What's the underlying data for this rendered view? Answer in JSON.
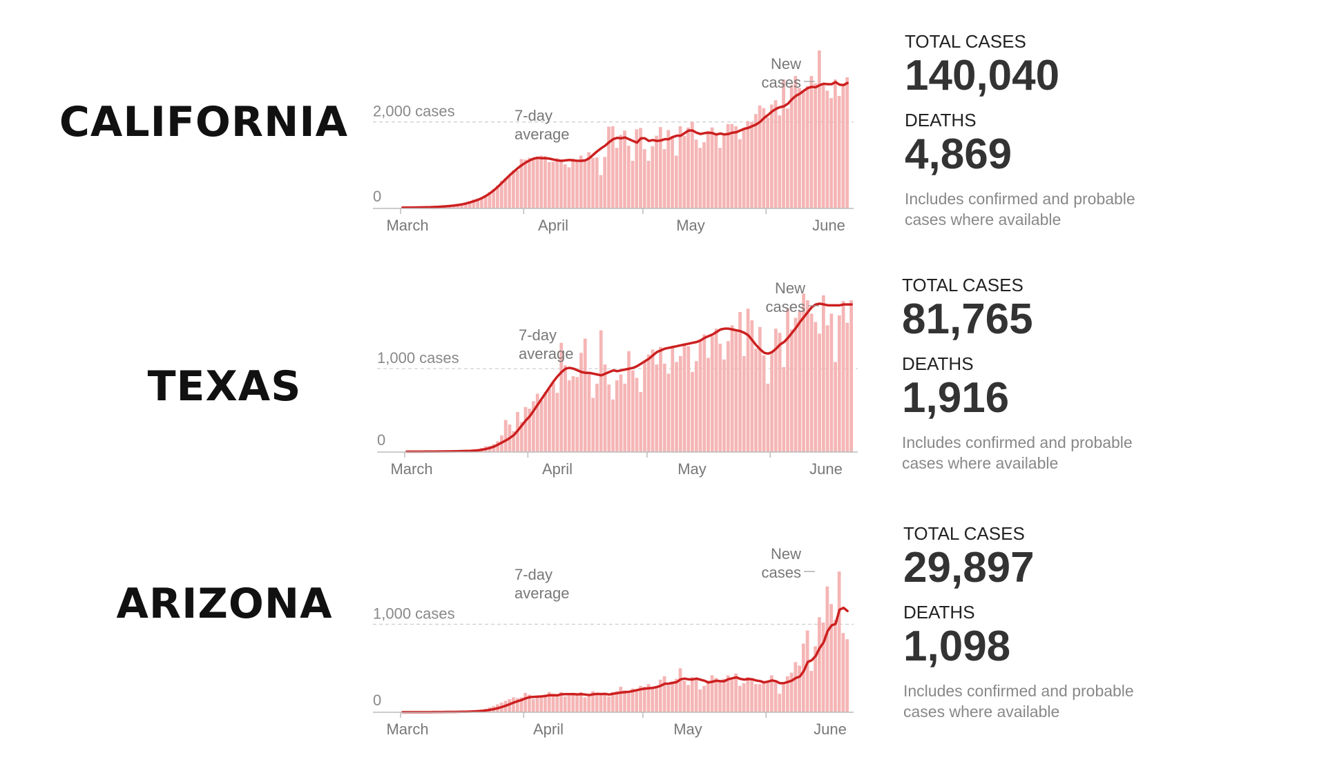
{
  "common": {
    "months": [
      "March",
      "April",
      "May",
      "June"
    ],
    "avg_label_line1": "7-day",
    "avg_label_line2": "average",
    "new_label_line1": "New",
    "new_label_line2": "cases",
    "total_label": "TOTAL CASES",
    "deaths_label": "DEATHS",
    "note_line1": "Includes confirmed and probable",
    "note_line2": "cases where available"
  },
  "colors": {
    "bar": "#f5b5b5",
    "line": "#cc1f1f",
    "grid": "#cccccc",
    "axis": "#bbbbbb"
  },
  "panels": [
    {
      "name": "CALIFORNIA",
      "total_cases": "140,040",
      "deaths": "4,869",
      "ref_label": "2,000 cases",
      "zero_label": "0"
    },
    {
      "name": "TEXAS",
      "total_cases": "81,765",
      "deaths": "1,916",
      "ref_label": "1,000 cases",
      "zero_label": "0"
    },
    {
      "name": "ARIZONA",
      "total_cases": "29,897",
      "deaths": "1,098",
      "ref_label": "1,000 cases",
      "zero_label": "0"
    }
  ],
  "chart_data": [
    {
      "type": "bar",
      "x_start": "2020-03-01",
      "ref_value": 2000,
      "ylim": [
        0,
        3700
      ],
      "new_cases": [
        20,
        15,
        22,
        18,
        25,
        30,
        28,
        35,
        40,
        45,
        55,
        60,
        70,
        80,
        95,
        110,
        140,
        170,
        210,
        230,
        260,
        310,
        380,
        450,
        530,
        640,
        700,
        770,
        880,
        880,
        1140,
        1130,
        1170,
        1140,
        1190,
        1220,
        1210,
        1070,
        1080,
        1160,
        1130,
        1020,
        950,
        1150,
        1070,
        1220,
        1140,
        1300,
        1170,
        1180,
        770,
        1190,
        1890,
        1900,
        1400,
        1700,
        1800,
        1450,
        1100,
        1830,
        1860,
        1370,
        1100,
        1440,
        1680,
        1880,
        1370,
        1810,
        1670,
        1220,
        1900,
        1680,
        1870,
        2000,
        1590,
        1400,
        1530,
        1790,
        1870,
        1730,
        1400,
        1720,
        1950,
        1950,
        1900,
        1600,
        1840,
        2020,
        2000,
        2180,
        2380,
        2320,
        2100,
        2400,
        2500,
        2150,
        2980,
        2310,
        2850,
        3060,
        2780,
        2730,
        2830,
        3060,
        2890,
        3650,
        2850,
        2720,
        2550,
        2980,
        2600,
        2830,
        3030
      ],
      "avg": [
        20,
        20,
        20,
        22,
        24,
        26,
        28,
        30,
        34,
        38,
        44,
        50,
        58,
        68,
        80,
        95,
        115,
        140,
        168,
        200,
        240,
        290,
        350,
        420,
        500,
        590,
        680,
        770,
        850,
        930,
        1000,
        1060,
        1110,
        1150,
        1170,
        1160,
        1160,
        1150,
        1130,
        1110,
        1100,
        1110,
        1120,
        1110,
        1100,
        1100,
        1110,
        1160,
        1240,
        1320,
        1390,
        1450,
        1530,
        1600,
        1630,
        1620,
        1640,
        1600,
        1560,
        1520,
        1620,
        1620,
        1560,
        1580,
        1560,
        1570,
        1600,
        1600,
        1650,
        1680,
        1680,
        1740,
        1800,
        1800,
        1750,
        1720,
        1740,
        1750,
        1740,
        1710,
        1730,
        1710,
        1720,
        1750,
        1760,
        1800,
        1840,
        1860,
        1900,
        1940,
        2000,
        2090,
        2160,
        2240,
        2300,
        2340,
        2360,
        2420,
        2520,
        2600,
        2650,
        2720,
        2780,
        2810,
        2800,
        2850,
        2880,
        2870,
        2870,
        2920,
        2860,
        2850,
        2900
      ]
    },
    {
      "type": "bar",
      "x_start": "2020-03-01",
      "ref_value": 1000,
      "ylim": [
        0,
        1920
      ],
      "new_cases": [
        5,
        5,
        5,
        5,
        6,
        6,
        6,
        7,
        7,
        8,
        8,
        9,
        10,
        12,
        14,
        16,
        20,
        26,
        34,
        50,
        70,
        75,
        95,
        130,
        200,
        385,
        330,
        250,
        480,
        360,
        540,
        520,
        610,
        700,
        620,
        720,
        760,
        830,
        710,
        1310,
        1040,
        860,
        910,
        900,
        1190,
        1360,
        940,
        650,
        820,
        1460,
        1050,
        810,
        630,
        860,
        930,
        820,
        1210,
        980,
        890,
        720,
        1080,
        1170,
        1230,
        1050,
        1260,
        1060,
        940,
        1270,
        1080,
        1150,
        1300,
        1270,
        960,
        1090,
        1340,
        1410,
        1130,
        1390,
        1480,
        1300,
        1110,
        1330,
        1520,
        1470,
        1680,
        1150,
        1720,
        1580,
        1240,
        1500,
        1160,
        820,
        1200,
        1480,
        1430,
        1020,
        1720,
        1470,
        1610,
        1700,
        1900,
        1820,
        1660,
        1560,
        1420,
        1880,
        1520,
        1660,
        1080,
        1640,
        1810,
        1550,
        1820
      ],
      "avg": [
        5,
        5,
        5,
        5,
        5,
        6,
        6,
        6,
        7,
        7,
        8,
        8,
        9,
        10,
        12,
        13,
        15,
        18,
        22,
        28,
        38,
        50,
        66,
        90,
        115,
        140,
        170,
        205,
        260,
        320,
        380,
        430,
        500,
        570,
        640,
        710,
        780,
        850,
        910,
        960,
        1000,
        1010,
        1000,
        980,
        960,
        950,
        950,
        940,
        930,
        920,
        940,
        960,
        980,
        970,
        980,
        990,
        1000,
        1010,
        1030,
        1060,
        1090,
        1120,
        1160,
        1200,
        1220,
        1240,
        1250,
        1260,
        1270,
        1280,
        1290,
        1300,
        1310,
        1320,
        1340,
        1370,
        1390,
        1410,
        1440,
        1470,
        1480,
        1480,
        1470,
        1460,
        1450,
        1430,
        1400,
        1340,
        1280,
        1230,
        1190,
        1180,
        1200,
        1240,
        1290,
        1320,
        1370,
        1430,
        1490,
        1560,
        1620,
        1680,
        1740,
        1770,
        1780,
        1770,
        1760,
        1760,
        1760,
        1760,
        1770,
        1770,
        1770
      ]
    },
    {
      "type": "bar",
      "x_start": "2020-03-01",
      "ref_value": 1000,
      "ylim": [
        0,
        1820
      ],
      "new_cases": [
        2,
        2,
        2,
        2,
        2,
        3,
        3,
        3,
        3,
        4,
        4,
        4,
        5,
        6,
        7,
        8,
        10,
        14,
        18,
        24,
        30,
        40,
        55,
        70,
        90,
        110,
        130,
        150,
        170,
        160,
        170,
        220,
        200,
        150,
        170,
        190,
        200,
        230,
        210,
        200,
        230,
        180,
        190,
        210,
        200,
        230,
        170,
        190,
        240,
        220,
        200,
        210,
        180,
        230,
        240,
        290,
        250,
        230,
        270,
        250,
        300,
        290,
        320,
        280,
        300,
        370,
        410,
        310,
        350,
        380,
        500,
        360,
        310,
        400,
        380,
        260,
        300,
        360,
        420,
        390,
        360,
        380,
        420,
        370,
        440,
        300,
        330,
        400,
        370,
        320,
        320,
        340,
        360,
        420,
        340,
        210,
        330,
        410,
        450,
        570,
        530,
        780,
        930,
        470,
        750,
        1080,
        1020,
        1430,
        1230,
        1050,
        1600,
        900,
        830
      ]
    }
  ]
}
